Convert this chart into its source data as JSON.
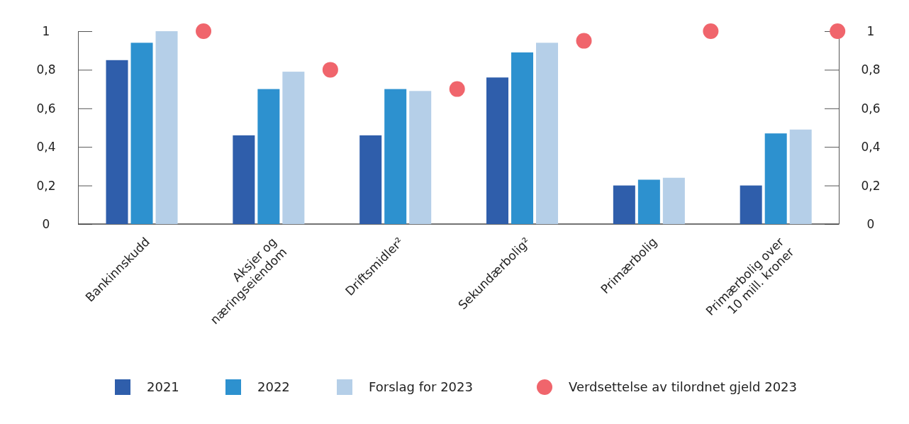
{
  "chart_data": {
    "type": "bar",
    "categories": [
      "Bankinnskudd",
      "Aksjer og\nnæringseiendom",
      "Driftsmidler²",
      "Sekundærbolig²",
      "Primærbolig",
      "Primærbolig over\n10 mill. kroner"
    ],
    "series": [
      {
        "name": "2021",
        "color": "#2f5eab",
        "values": [
          0.85,
          0.46,
          0.46,
          0.76,
          0.2,
          0.2
        ]
      },
      {
        "name": "2022",
        "color": "#2d91cf",
        "values": [
          0.94,
          0.7,
          0.7,
          0.89,
          0.23,
          0.47
        ]
      },
      {
        "name": "Forslag for 2023",
        "color": "#b5cfe8",
        "values": [
          1,
          0.79,
          0.69,
          0.94,
          0.24,
          0.49
        ]
      },
      {
        "name": "Verdsettelse av tilordnet gjeld 2023",
        "type": "scatter",
        "marker": "circle",
        "color": "#f0656c",
        "x": [
          "Bankinnskudd",
          "Aksjer og\nnæringseiendom",
          "Driftsmidler²",
          "Sekundærbolig²",
          "Primærbolig",
          "Primærbolig over\n10 mill. kroner"
        ],
        "values": [
          1,
          0.8,
          0.7,
          0.95,
          1,
          1
        ]
      }
    ],
    "ylim": [
      0,
      1
    ],
    "yticks": [
      0,
      {
        "value": 0.2,
        "label": "0,2"
      },
      {
        "value": 0.4,
        "label": "0,4"
      },
      {
        "value": 0.6,
        "label": "0,6"
      },
      {
        "value": 0.8,
        "label": "0,8"
      },
      1
    ],
    "y2lim": [
      0,
      1
    ],
    "y2ticks": [
      0,
      {
        "value": 0.2,
        "label": "0,2"
      },
      {
        "value": 0.4,
        "label": "0,4"
      },
      {
        "value": 0.6,
        "label": "0,6"
      },
      {
        "value": 0.8,
        "label": "0,8"
      },
      1
    ],
    "grid": false,
    "legend": "bottom"
  }
}
